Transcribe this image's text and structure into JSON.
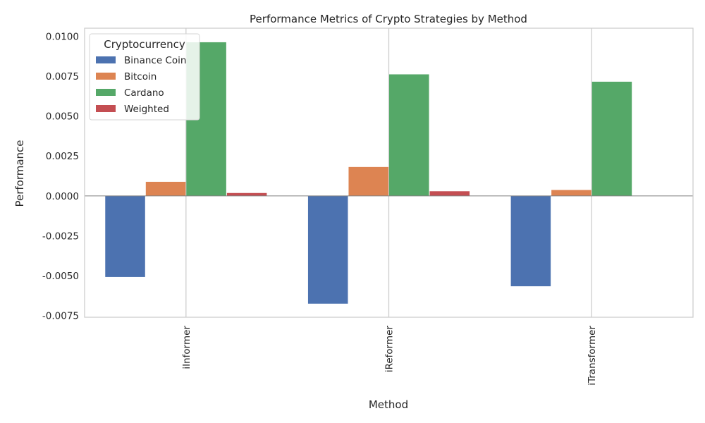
{
  "chart_data": {
    "type": "bar",
    "title": "Performance Metrics of Crypto Strategies by Method",
    "xlabel": "Method",
    "ylabel": "Performance",
    "categories": [
      "iInformer",
      "iReformer",
      "iTransformer"
    ],
    "series": [
      {
        "name": "Binance Coin",
        "color": "#4c72b0",
        "values": [
          -0.00508,
          -0.00675,
          -0.00566
        ]
      },
      {
        "name": "Bitcoin",
        "color": "#dd8452",
        "values": [
          0.00088,
          0.00181,
          0.00037
        ]
      },
      {
        "name": "Cardano",
        "color": "#55a868",
        "values": [
          0.00962,
          0.00761,
          0.00715
        ]
      },
      {
        "name": "Weighted",
        "color": "#c44e52",
        "values": [
          0.00018,
          0.00029,
          1e-05
        ]
      }
    ],
    "ylim": [
      -0.0076,
      0.0105
    ],
    "yticks": [
      "-0.0075",
      "-0.0050",
      "-0.0025",
      "0.0000",
      "0.0025",
      "0.0050",
      "0.0075",
      "0.0100"
    ],
    "ytick_values": [
      -0.0075,
      -0.005,
      -0.0025,
      0,
      0.0025,
      0.005,
      0.0075,
      0.01
    ],
    "legend": {
      "title": "Cryptocurrency",
      "position": "top-left"
    },
    "grid": true,
    "zero_line": true
  }
}
